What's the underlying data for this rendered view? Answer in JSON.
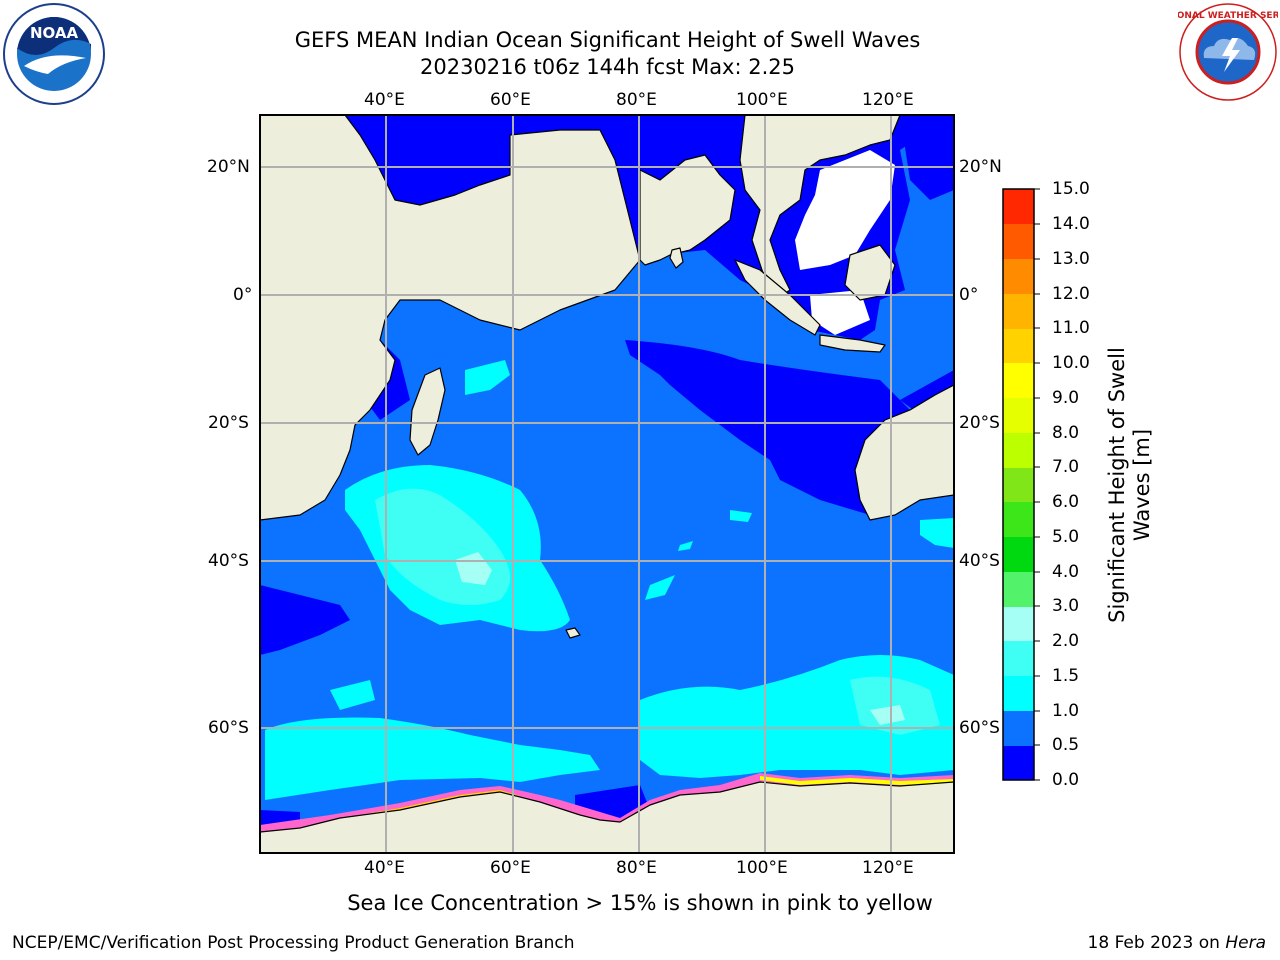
{
  "header": {
    "title_line1": "GEFS MEAN Indian Ocean Significant Height of Swell Waves",
    "title_line2": "20230216 t06z 144h fcst   Max: 2.25"
  },
  "logos": {
    "left": {
      "icon": "noaa-logo",
      "text": "NOAA"
    },
    "right": {
      "icon": "national-weather-service-logo",
      "text": "NATIONAL WEATHER SERVICE"
    }
  },
  "map": {
    "lon_top_labels": [
      "40°E",
      "60°E",
      "80°E",
      "100°E",
      "120°E"
    ],
    "lon_bottom_labels": [
      "40°E",
      "60°E",
      "80°E",
      "100°E",
      "120°E"
    ],
    "lat_left_labels": [
      "20°N",
      "0°",
      "20°S",
      "40°S",
      "60°S"
    ],
    "lat_right_labels": [
      "20°N",
      "0°",
      "20°S",
      "40°S",
      "60°S"
    ],
    "colors": {
      "land": "#eeeedd",
      "no_data": "#ffffff",
      "grid": "#b0b0b0",
      "coast": "#000000"
    }
  },
  "colorbar": {
    "title": "Significant Height of Swell Waves [m]",
    "title_line1": "Significant Height of Swell",
    "title_line2": "Waves [m]",
    "labels": [
      "15.0",
      "14.0",
      "13.0",
      "12.0",
      "11.0",
      "10.0",
      "9.0",
      "8.0",
      "7.0",
      "6.0",
      "5.0",
      "4.0",
      "3.0",
      "2.0",
      "1.5",
      "1.0",
      "0.5",
      "0.0"
    ],
    "colors_bottom_to_top": [
      "#0000ff",
      "#0b73ff",
      "#00ffff",
      "#3ffff5",
      "#a6fff5",
      "#52f26b",
      "#00d90f",
      "#3ce619",
      "#80e617",
      "#bbff00",
      "#e6ff00",
      "#ffff00",
      "#ffd200",
      "#ffb400",
      "#ff8c00",
      "#ff5a00",
      "#ff2800"
    ]
  },
  "ice_note": "Sea Ice Concentration > 15% is shown in pink to yellow",
  "footer": {
    "left": "NCEP/EMC/Verification Post Processing Product Generation Branch",
    "right_prefix": "18 Feb 2023 on ",
    "right_machine": "Hera"
  }
}
